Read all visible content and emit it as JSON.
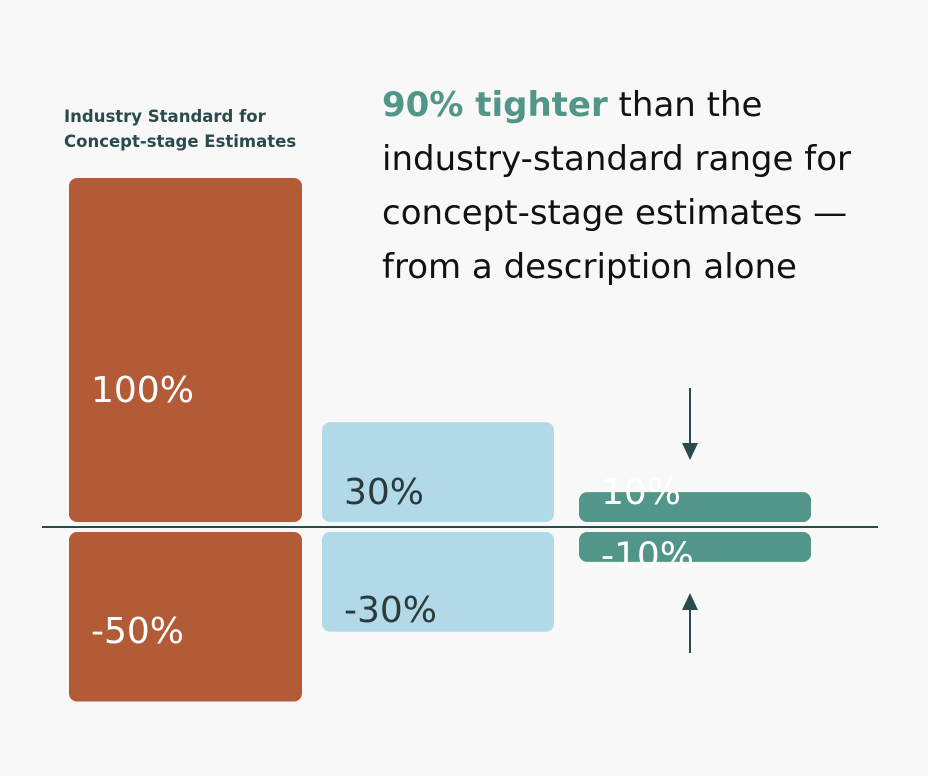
{
  "caption": {
    "line1": "Industry Standard for",
    "line2": "Concept-stage Estimates"
  },
  "headline": {
    "accent": "90% tighter",
    "rest": " than the industry-standard range for concept-stage estimates — from a description alone"
  },
  "colors": {
    "industry": "#b35a37",
    "mid": "#b1d9e7",
    "tight": "#52968a",
    "baseline": "#2b4a4c",
    "arrow": "#2b4a4c"
  },
  "chart_data": {
    "type": "bar",
    "series": [
      {
        "upper": 100,
        "lower": -50,
        "upper_label": "100%",
        "lower_label": "-50%",
        "color_key": "industry",
        "label_color": "#ffffff"
      },
      {
        "upper": 30,
        "lower": -30,
        "upper_label": "30%",
        "lower_label": "-30%",
        "color_key": "mid",
        "label_color": "#2b3a3c"
      },
      {
        "upper": 10,
        "lower": -10,
        "upper_label": "10%",
        "lower_label": "-10%",
        "color_key": "tight",
        "label_color": "#ffffff"
      }
    ]
  }
}
